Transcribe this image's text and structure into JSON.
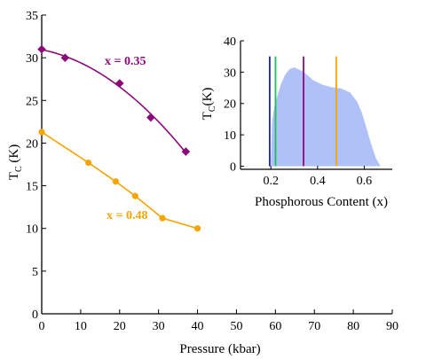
{
  "chart_data": [
    {
      "type": "scatter",
      "xlabel": "Pressure (kbar)",
      "ylabel_main": "T",
      "ylabel_sub": "C",
      "ylabel_unit": " (K)",
      "xlim": [
        0,
        90
      ],
      "ylim": [
        0,
        35
      ],
      "xticks": [
        0,
        10,
        20,
        30,
        40,
        50,
        60,
        70,
        80,
        90
      ],
      "yticks": [
        0,
        5,
        10,
        15,
        20,
        25,
        30,
        35
      ],
      "grid": false,
      "series": [
        {
          "name": "x = 0.35",
          "color": "#8B0A7A",
          "marker": "diamond",
          "line": "smooth-fit",
          "x": [
            0,
            6,
            20,
            28,
            37
          ],
          "y": [
            31.0,
            30.0,
            27.0,
            23.0,
            19.0
          ]
        },
        {
          "name": "x = 0.48",
          "color": "#F5A500",
          "marker": "circle",
          "line": "connected",
          "x": [
            0,
            12,
            19,
            24,
            31,
            40
          ],
          "y": [
            21.3,
            17.7,
            15.5,
            13.8,
            11.2,
            10.0
          ]
        }
      ]
    },
    {
      "type": "area",
      "xlabel": "Phosphorous Content (x)",
      "ylabel_main": "T",
      "ylabel_sub": "C",
      "ylabel_unit": "(K)",
      "xlim": [
        0.07,
        0.72
      ],
      "ylim": [
        -1,
        40
      ],
      "xticks": [
        0.2,
        0.4,
        0.6
      ],
      "yticks": [
        0,
        10,
        20,
        30,
        40
      ],
      "fill_color": "#AFC1F7",
      "area": {
        "x": [
          0.2,
          0.205,
          0.215,
          0.23,
          0.245,
          0.26,
          0.28,
          0.3,
          0.33,
          0.35,
          0.38,
          0.42,
          0.46,
          0.5,
          0.54,
          0.57,
          0.59,
          0.61,
          0.63,
          0.65,
          0.67
        ],
        "y": [
          0,
          14,
          19,
          23,
          26.5,
          29,
          31,
          31.5,
          30.5,
          29.5,
          27.5,
          26,
          25.2,
          24.8,
          23.5,
          20.5,
          17,
          12,
          7,
          2.5,
          0
        ]
      },
      "vlines": [
        {
          "x": 0.195,
          "ymax": 35,
          "color": "#1A1FCC"
        },
        {
          "x": 0.22,
          "ymax": 35,
          "color": "#1FBF5A"
        },
        {
          "x": 0.34,
          "ymax": 35,
          "color": "#8B0A7A"
        },
        {
          "x": 0.48,
          "ymax": 35,
          "color": "#F5A500"
        }
      ]
    }
  ]
}
